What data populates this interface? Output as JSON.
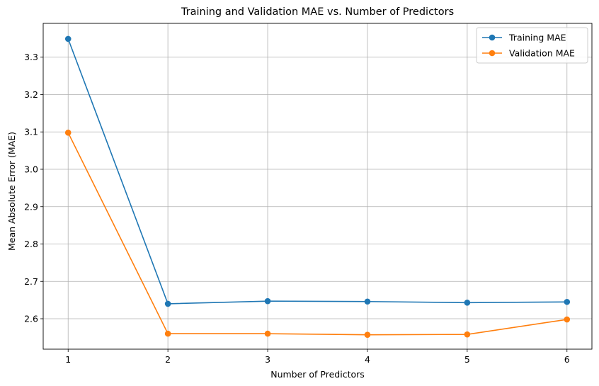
{
  "chart_data": {
    "type": "line",
    "title": "Training and Validation MAE vs. Number of Predictors",
    "xlabel": "Number of Predictors",
    "ylabel": "Mean Absolute Error (MAE)",
    "x": [
      1,
      2,
      3,
      4,
      5,
      6
    ],
    "xticks": [
      "1",
      "2",
      "3",
      "4",
      "5",
      "6"
    ],
    "yticks": [
      "2.6",
      "2.7",
      "2.8",
      "2.9",
      "3.0",
      "3.1",
      "3.2",
      "3.3"
    ],
    "xlim": [
      0.75,
      6.25
    ],
    "ylim": [
      2.5185,
      3.3905
    ],
    "grid": true,
    "legend_position": "top-right",
    "series": [
      {
        "name": "Training MAE",
        "color": "#1f77b4",
        "values": [
          3.349,
          2.64,
          2.647,
          2.646,
          2.643,
          2.645
        ]
      },
      {
        "name": "Validation MAE",
        "color": "#ff7f0e",
        "values": [
          3.098,
          2.56,
          2.56,
          2.557,
          2.558,
          2.598
        ]
      }
    ]
  }
}
